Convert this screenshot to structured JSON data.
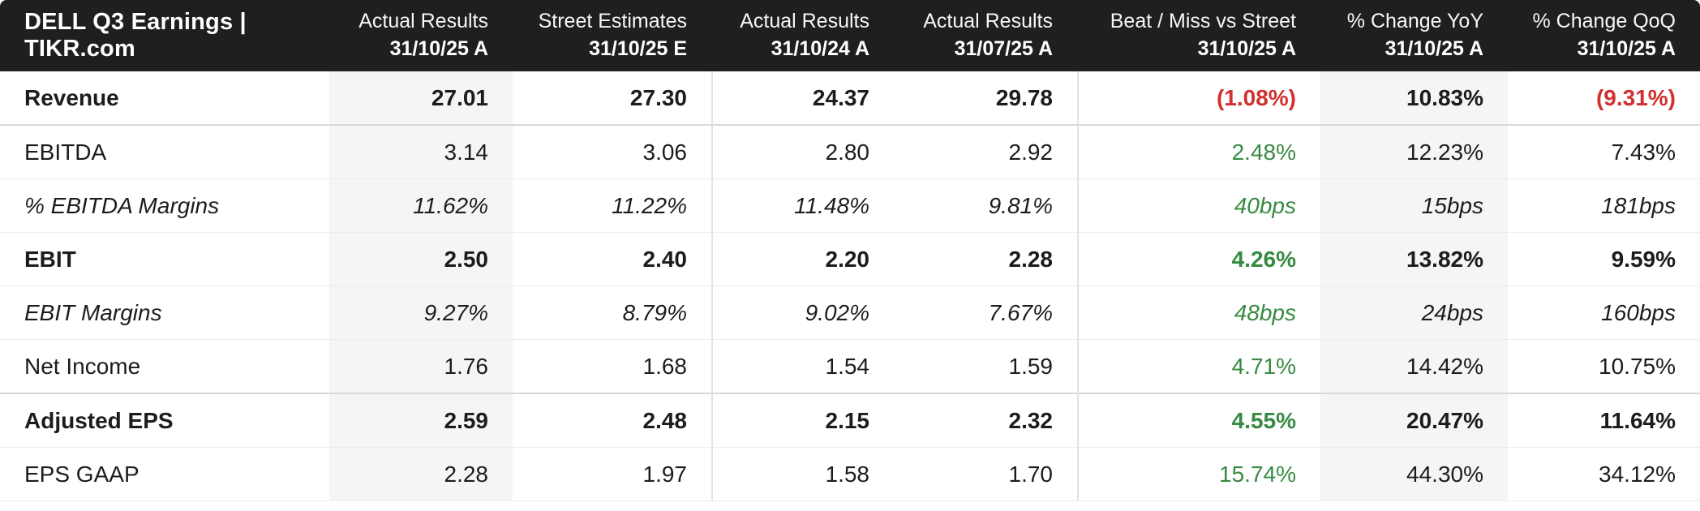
{
  "title": "DELL Q3 Earnings | TIKR.com",
  "columns": [
    {
      "label": "Actual Results",
      "date": "31/10/25 A"
    },
    {
      "label": "Street Estimates",
      "date": "31/10/25 E"
    },
    {
      "label": "Actual Results",
      "date": "31/10/24 A"
    },
    {
      "label": "Actual Results",
      "date": "31/07/25 A"
    },
    {
      "label": "Beat / Miss vs Street",
      "date": "31/10/25 A"
    },
    {
      "label": "% Change YoY",
      "date": "31/10/25 A"
    },
    {
      "label": "% Change QoQ",
      "date": "31/10/25 A"
    }
  ],
  "rows": [
    {
      "label": "Revenue",
      "style": "bold",
      "cells": [
        {
          "t": "27.01"
        },
        {
          "t": "27.30"
        },
        {
          "t": "24.37"
        },
        {
          "t": "29.78"
        },
        {
          "t": "(1.08%)",
          "c": "red"
        },
        {
          "t": "10.83%"
        },
        {
          "t": "(9.31%)",
          "c": "red"
        }
      ]
    },
    {
      "label": "EBITDA",
      "style": "regular",
      "cells": [
        {
          "t": "3.14"
        },
        {
          "t": "3.06"
        },
        {
          "t": "2.80"
        },
        {
          "t": "2.92"
        },
        {
          "t": "2.48%",
          "c": "green"
        },
        {
          "t": "12.23%"
        },
        {
          "t": "7.43%"
        }
      ]
    },
    {
      "label": "% EBITDA Margins",
      "style": "italic",
      "cells": [
        {
          "t": "11.62%"
        },
        {
          "t": "11.22%"
        },
        {
          "t": "11.48%"
        },
        {
          "t": "9.81%"
        },
        {
          "t": "40bps",
          "c": "green"
        },
        {
          "t": "15bps"
        },
        {
          "t": "181bps"
        }
      ]
    },
    {
      "label": "EBIT",
      "style": "bold",
      "cells": [
        {
          "t": "2.50"
        },
        {
          "t": "2.40"
        },
        {
          "t": "2.20"
        },
        {
          "t": "2.28"
        },
        {
          "t": "4.26%",
          "c": "green"
        },
        {
          "t": "13.82%"
        },
        {
          "t": "9.59%"
        }
      ]
    },
    {
      "label": "EBIT Margins",
      "style": "italic",
      "cells": [
        {
          "t": "9.27%"
        },
        {
          "t": "8.79%"
        },
        {
          "t": "9.02%"
        },
        {
          "t": "7.67%"
        },
        {
          "t": "48bps",
          "c": "green"
        },
        {
          "t": "24bps"
        },
        {
          "t": "160bps"
        }
      ]
    },
    {
      "label": "Net Income",
      "style": "regular",
      "cells": [
        {
          "t": "1.76"
        },
        {
          "t": "1.68"
        },
        {
          "t": "1.54"
        },
        {
          "t": "1.59"
        },
        {
          "t": "4.71%",
          "c": "green"
        },
        {
          "t": "14.42%"
        },
        {
          "t": "10.75%"
        }
      ]
    },
    {
      "label": "Adjusted EPS",
      "style": "bold",
      "cells": [
        {
          "t": "2.59"
        },
        {
          "t": "2.48"
        },
        {
          "t": "2.15"
        },
        {
          "t": "2.32"
        },
        {
          "t": "4.55%",
          "c": "green"
        },
        {
          "t": "20.47%"
        },
        {
          "t": "11.64%"
        }
      ]
    },
    {
      "label": "EPS GAAP",
      "style": "regular",
      "cells": [
        {
          "t": "2.28"
        },
        {
          "t": "1.97"
        },
        {
          "t": "1.58"
        },
        {
          "t": "1.70"
        },
        {
          "t": "15.74%",
          "c": "green"
        },
        {
          "t": "44.30%"
        },
        {
          "t": "34.12%"
        }
      ]
    }
  ],
  "colors": {
    "red": "#d0312f",
    "green": "#378a42",
    "header-bg": "#1f1f21",
    "shade": "#f5f5f6",
    "text": "#1c1c1c"
  }
}
